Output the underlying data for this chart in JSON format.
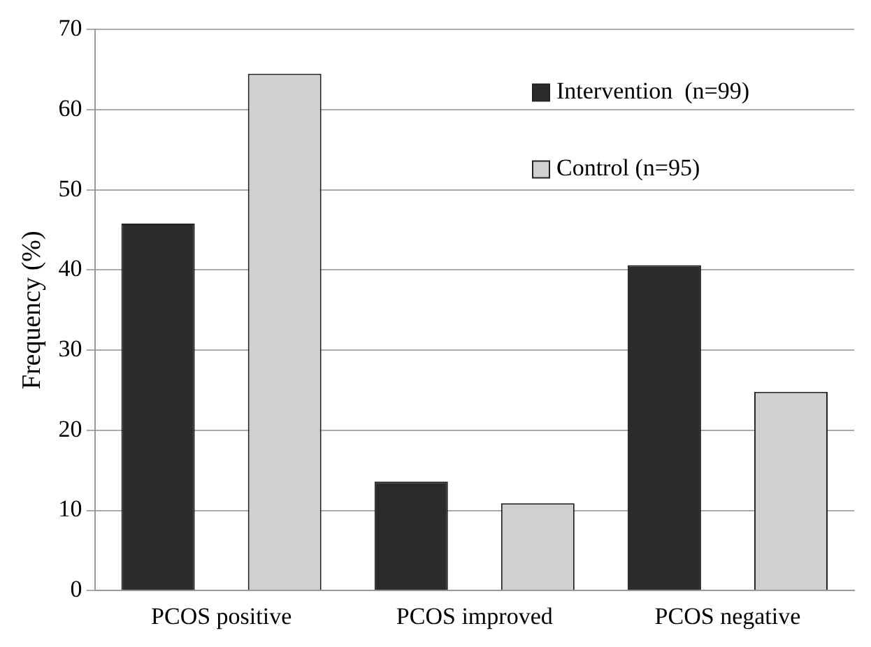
{
  "chart_data": {
    "type": "bar",
    "ylabel": "Frequency (%)",
    "categories": [
      "PCOS positive",
      "PCOS improved",
      "PCOS negative"
    ],
    "series": [
      {
        "name": "Intervention  (n=99)",
        "color": "#2b2b2b",
        "values": [
          45.8,
          13.6,
          40.6
        ]
      },
      {
        "name": "Control (n=95)",
        "color": "#d0d0d0",
        "values": [
          64.5,
          10.9,
          24.8
        ]
      }
    ],
    "ylim": [
      0,
      70
    ],
    "yticks": [
      0,
      10,
      20,
      30,
      40,
      50,
      60,
      70
    ],
    "grid": "y",
    "legend": "top right"
  }
}
